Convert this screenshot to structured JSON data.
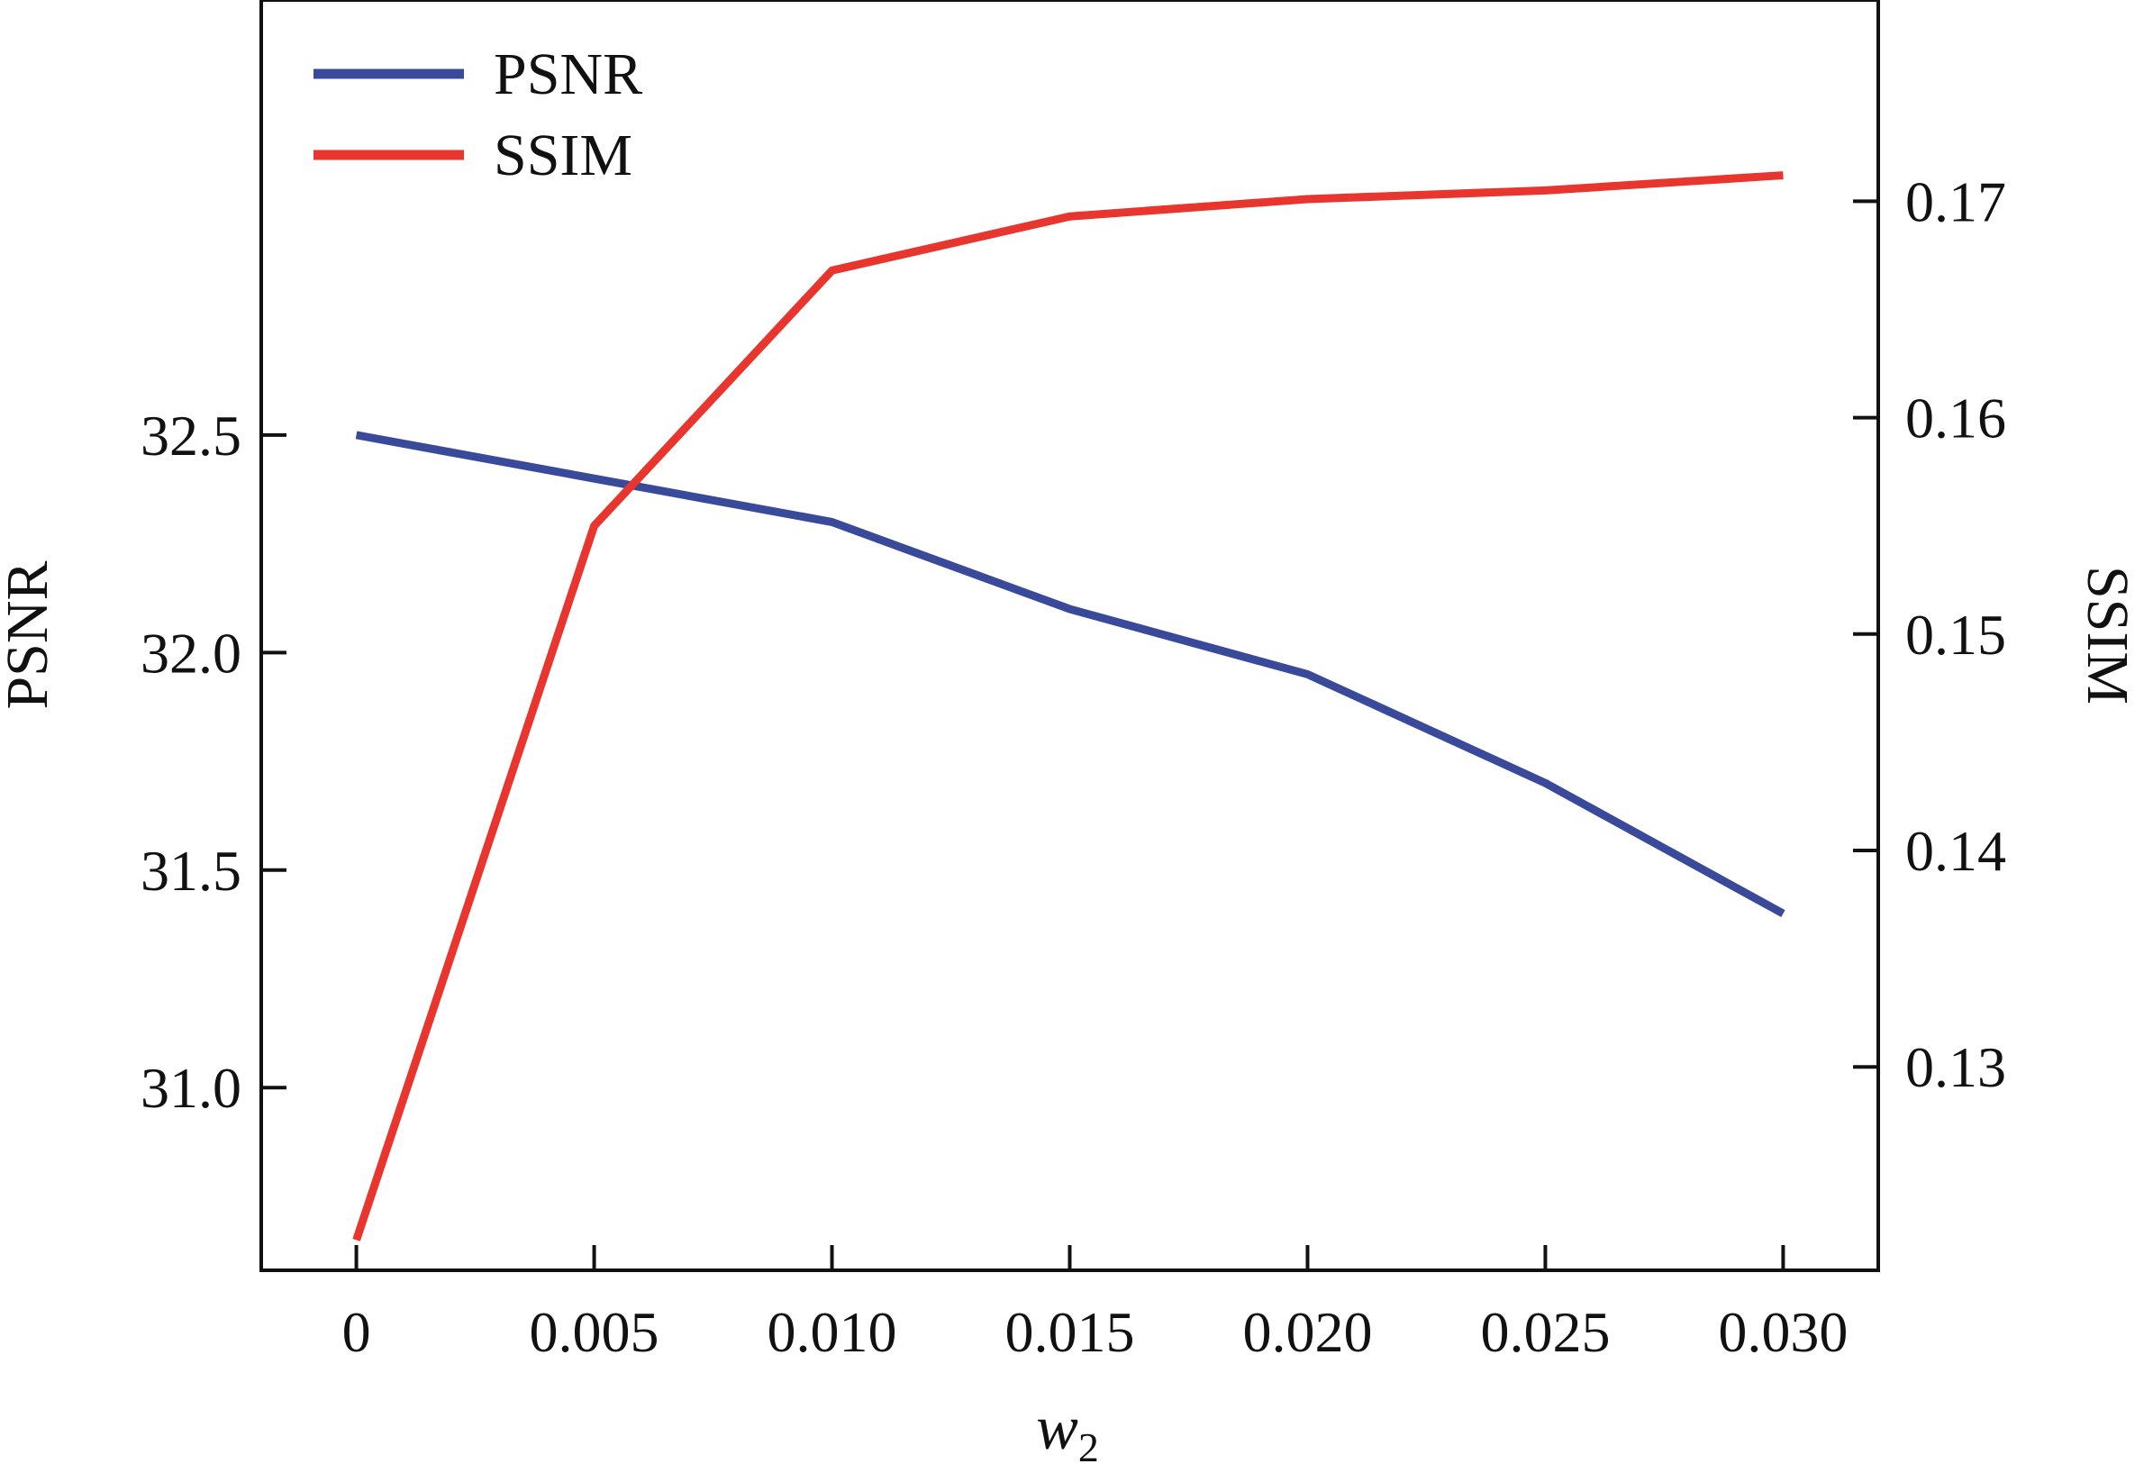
{
  "chart_data": {
    "type": "line",
    "x": [
      0,
      0.005,
      0.01,
      0.015,
      0.02,
      0.025,
      0.03
    ],
    "x_tick_labels": [
      "0",
      "0.005",
      "0.010",
      "0.015",
      "0.020",
      "0.025",
      "0.030"
    ],
    "xlabel": {
      "base": "w",
      "subscript": "2"
    },
    "xlim": [
      -0.002,
      0.032
    ],
    "left_axis": {
      "label": "PSNR",
      "ylim": [
        30.58,
        33.5
      ],
      "ticks": [
        31.0,
        31.5,
        32.0,
        32.5
      ],
      "tick_labels": [
        "31.0",
        "31.5",
        "32.0",
        "32.5"
      ]
    },
    "right_axis": {
      "label": "SSIM",
      "ylim": [
        0.1206,
        0.1793
      ],
      "ticks": [
        0.13,
        0.14,
        0.15,
        0.16,
        0.17
      ],
      "tick_labels": [
        "0.13",
        "0.14",
        "0.15",
        "0.16",
        "0.17"
      ]
    },
    "series": [
      {
        "name": "PSNR",
        "axis": "left",
        "color": "#3a4a9a",
        "values": [
          32.5,
          32.4,
          32.3,
          32.1,
          31.95,
          31.7,
          31.4
        ]
      },
      {
        "name": "SSIM",
        "axis": "right",
        "color": "#e8352e",
        "values": [
          0.122,
          0.155,
          0.1668,
          0.1693,
          0.1701,
          0.1705,
          0.1712
        ]
      }
    ],
    "legend": {
      "position": "top-left"
    },
    "grid": false
  }
}
